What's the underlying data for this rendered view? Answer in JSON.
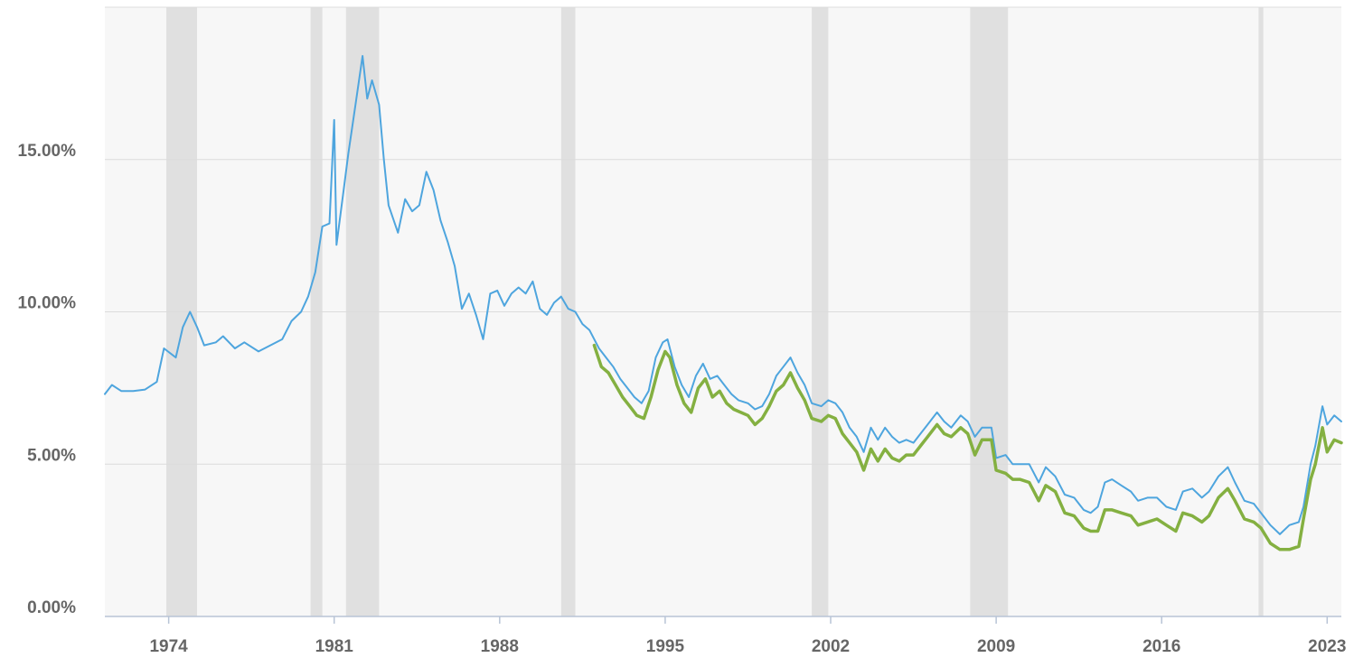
{
  "chart_data": {
    "type": "line",
    "title": "",
    "xlabel": "",
    "ylabel": "",
    "x_range": [
      1971.3,
      2023.6
    ],
    "ylim": [
      0,
      20
    ],
    "y_ticks": [
      {
        "value": 0,
        "label": "0.00%"
      },
      {
        "value": 5,
        "label": "5.00%"
      },
      {
        "value": 10,
        "label": "10.00%"
      },
      {
        "value": 15,
        "label": "15.00%"
      }
    ],
    "x_ticks": [
      {
        "value": 1974,
        "label": "1974"
      },
      {
        "value": 1981,
        "label": "1981"
      },
      {
        "value": 1988,
        "label": "1988"
      },
      {
        "value": 1995,
        "label": "1995"
      },
      {
        "value": 2002,
        "label": "2002"
      },
      {
        "value": 2009,
        "label": "2009"
      },
      {
        "value": 2016,
        "label": "2016"
      },
      {
        "value": 2023,
        "label": "2023"
      }
    ],
    "grid": true,
    "recessions": [
      [
        1973.9,
        1975.2
      ],
      [
        1980.0,
        1980.5
      ],
      [
        1981.5,
        1982.9
      ],
      [
        1990.6,
        1991.2
      ],
      [
        2001.2,
        2001.9
      ],
      [
        2007.9,
        2009.5
      ],
      [
        2020.1,
        2020.3
      ]
    ],
    "series": [
      {
        "color": "#4ea5de",
        "points": [
          [
            1971.3,
            7.3
          ],
          [
            1971.6,
            7.6
          ],
          [
            1972.0,
            7.4
          ],
          [
            1972.5,
            7.4
          ],
          [
            1973.0,
            7.45
          ],
          [
            1973.5,
            7.7
          ],
          [
            1973.8,
            8.8
          ],
          [
            1974.3,
            8.5
          ],
          [
            1974.6,
            9.5
          ],
          [
            1974.9,
            10.0
          ],
          [
            1975.2,
            9.5
          ],
          [
            1975.5,
            8.9
          ],
          [
            1976.0,
            9.0
          ],
          [
            1976.3,
            9.2
          ],
          [
            1976.8,
            8.8
          ],
          [
            1977.2,
            9.0
          ],
          [
            1977.8,
            8.7
          ],
          [
            1978.3,
            8.9
          ],
          [
            1978.8,
            9.1
          ],
          [
            1979.2,
            9.7
          ],
          [
            1979.6,
            10.0
          ],
          [
            1979.9,
            10.5
          ],
          [
            1980.2,
            11.3
          ],
          [
            1980.5,
            12.8
          ],
          [
            1980.8,
            12.9
          ],
          [
            1981.0,
            16.3
          ],
          [
            1981.1,
            12.2
          ],
          [
            1981.4,
            14.0
          ],
          [
            1981.6,
            15.2
          ],
          [
            1981.9,
            16.8
          ],
          [
            1982.2,
            18.4
          ],
          [
            1982.4,
            17.0
          ],
          [
            1982.6,
            17.6
          ],
          [
            1982.9,
            16.8
          ],
          [
            1983.1,
            15.0
          ],
          [
            1983.3,
            13.5
          ],
          [
            1983.7,
            12.6
          ],
          [
            1984.0,
            13.7
          ],
          [
            1984.3,
            13.3
          ],
          [
            1984.6,
            13.5
          ],
          [
            1984.9,
            14.6
          ],
          [
            1985.2,
            14.0
          ],
          [
            1985.5,
            13.0
          ],
          [
            1985.8,
            12.3
          ],
          [
            1986.1,
            11.5
          ],
          [
            1986.4,
            10.1
          ],
          [
            1986.7,
            10.6
          ],
          [
            1987.0,
            9.9
          ],
          [
            1987.3,
            9.1
          ],
          [
            1987.6,
            10.6
          ],
          [
            1987.9,
            10.7
          ],
          [
            1988.2,
            10.2
          ],
          [
            1988.5,
            10.6
          ],
          [
            1988.8,
            10.8
          ],
          [
            1989.1,
            10.6
          ],
          [
            1989.4,
            11.0
          ],
          [
            1989.7,
            10.1
          ],
          [
            1990.0,
            9.9
          ],
          [
            1990.3,
            10.3
          ],
          [
            1990.6,
            10.5
          ],
          [
            1990.9,
            10.1
          ],
          [
            1991.2,
            10.0
          ],
          [
            1991.5,
            9.6
          ],
          [
            1991.8,
            9.4
          ],
          [
            1992.2,
            8.8
          ],
          [
            1992.5,
            8.5
          ],
          [
            1992.8,
            8.2
          ],
          [
            1993.1,
            7.8
          ],
          [
            1993.4,
            7.5
          ],
          [
            1993.7,
            7.2
          ],
          [
            1994.0,
            7.0
          ],
          [
            1994.3,
            7.4
          ],
          [
            1994.6,
            8.5
          ],
          [
            1994.9,
            9.0
          ],
          [
            1995.1,
            9.1
          ],
          [
            1995.4,
            8.2
          ],
          [
            1995.7,
            7.6
          ],
          [
            1996.0,
            7.2
          ],
          [
            1996.3,
            7.9
          ],
          [
            1996.6,
            8.3
          ],
          [
            1996.9,
            7.8
          ],
          [
            1997.2,
            7.9
          ],
          [
            1997.5,
            7.6
          ],
          [
            1997.8,
            7.3
          ],
          [
            1998.1,
            7.1
          ],
          [
            1998.5,
            7.0
          ],
          [
            1998.8,
            6.8
          ],
          [
            1999.1,
            6.9
          ],
          [
            1999.4,
            7.3
          ],
          [
            1999.7,
            7.9
          ],
          [
            2000.0,
            8.2
          ],
          [
            2000.3,
            8.5
          ],
          [
            2000.6,
            8.0
          ],
          [
            2000.9,
            7.6
          ],
          [
            2001.2,
            7.0
          ],
          [
            2001.6,
            6.9
          ],
          [
            2001.9,
            7.1
          ],
          [
            2002.2,
            7.0
          ],
          [
            2002.5,
            6.7
          ],
          [
            2002.8,
            6.2
          ],
          [
            2003.1,
            5.9
          ],
          [
            2003.4,
            5.4
          ],
          [
            2003.7,
            6.2
          ],
          [
            2004.0,
            5.8
          ],
          [
            2004.3,
            6.2
          ],
          [
            2004.6,
            5.9
          ],
          [
            2004.9,
            5.7
          ],
          [
            2005.2,
            5.8
          ],
          [
            2005.5,
            5.7
          ],
          [
            2005.8,
            6.0
          ],
          [
            2006.1,
            6.3
          ],
          [
            2006.5,
            6.7
          ],
          [
            2006.8,
            6.4
          ],
          [
            2007.1,
            6.2
          ],
          [
            2007.5,
            6.6
          ],
          [
            2007.8,
            6.4
          ],
          [
            2008.1,
            5.9
          ],
          [
            2008.4,
            6.2
          ],
          [
            2008.8,
            6.2
          ],
          [
            2009.0,
            5.2
          ],
          [
            2009.4,
            5.3
          ],
          [
            2009.7,
            5.0
          ],
          [
            2010.0,
            5.0
          ],
          [
            2010.4,
            5.0
          ],
          [
            2010.8,
            4.4
          ],
          [
            2011.1,
            4.9
          ],
          [
            2011.5,
            4.6
          ],
          [
            2011.9,
            4.0
          ],
          [
            2012.3,
            3.9
          ],
          [
            2012.7,
            3.5
          ],
          [
            2013.0,
            3.4
          ],
          [
            2013.3,
            3.6
          ],
          [
            2013.6,
            4.4
          ],
          [
            2013.9,
            4.5
          ],
          [
            2014.3,
            4.3
          ],
          [
            2014.7,
            4.1
          ],
          [
            2015.0,
            3.8
          ],
          [
            2015.4,
            3.9
          ],
          [
            2015.8,
            3.9
          ],
          [
            2016.2,
            3.6
          ],
          [
            2016.6,
            3.5
          ],
          [
            2016.9,
            4.1
          ],
          [
            2017.3,
            4.2
          ],
          [
            2017.7,
            3.9
          ],
          [
            2018.0,
            4.1
          ],
          [
            2018.4,
            4.6
          ],
          [
            2018.8,
            4.9
          ],
          [
            2019.1,
            4.4
          ],
          [
            2019.5,
            3.8
          ],
          [
            2019.9,
            3.7
          ],
          [
            2020.2,
            3.4
          ],
          [
            2020.6,
            3.0
          ],
          [
            2021.0,
            2.7
          ],
          [
            2021.4,
            3.0
          ],
          [
            2021.8,
            3.1
          ],
          [
            2022.0,
            3.6
          ],
          [
            2022.3,
            5.0
          ],
          [
            2022.5,
            5.6
          ],
          [
            2022.8,
            6.9
          ],
          [
            2023.0,
            6.3
          ],
          [
            2023.3,
            6.6
          ],
          [
            2023.6,
            6.4
          ]
        ]
      },
      {
        "color": "#84b041",
        "points": [
          [
            1992.0,
            8.9
          ],
          [
            1992.3,
            8.2
          ],
          [
            1992.6,
            8.0
          ],
          [
            1992.9,
            7.6
          ],
          [
            1993.2,
            7.2
          ],
          [
            1993.5,
            6.9
          ],
          [
            1993.8,
            6.6
          ],
          [
            1994.1,
            6.5
          ],
          [
            1994.4,
            7.2
          ],
          [
            1994.7,
            8.1
          ],
          [
            1995.0,
            8.7
          ],
          [
            1995.2,
            8.5
          ],
          [
            1995.5,
            7.6
          ],
          [
            1995.8,
            7.0
          ],
          [
            1996.1,
            6.7
          ],
          [
            1996.4,
            7.5
          ],
          [
            1996.7,
            7.8
          ],
          [
            1997.0,
            7.2
          ],
          [
            1997.3,
            7.4
          ],
          [
            1997.6,
            7.0
          ],
          [
            1997.9,
            6.8
          ],
          [
            1998.2,
            6.7
          ],
          [
            1998.5,
            6.6
          ],
          [
            1998.8,
            6.3
          ],
          [
            1999.1,
            6.5
          ],
          [
            1999.4,
            6.9
          ],
          [
            1999.7,
            7.4
          ],
          [
            2000.0,
            7.6
          ],
          [
            2000.3,
            8.0
          ],
          [
            2000.6,
            7.5
          ],
          [
            2000.9,
            7.1
          ],
          [
            2001.2,
            6.5
          ],
          [
            2001.6,
            6.4
          ],
          [
            2001.9,
            6.6
          ],
          [
            2002.2,
            6.5
          ],
          [
            2002.5,
            6.0
          ],
          [
            2002.8,
            5.7
          ],
          [
            2003.1,
            5.4
          ],
          [
            2003.4,
            4.8
          ],
          [
            2003.7,
            5.5
          ],
          [
            2004.0,
            5.1
          ],
          [
            2004.3,
            5.5
          ],
          [
            2004.6,
            5.2
          ],
          [
            2004.9,
            5.1
          ],
          [
            2005.2,
            5.3
          ],
          [
            2005.5,
            5.3
          ],
          [
            2005.8,
            5.6
          ],
          [
            2006.1,
            5.9
          ],
          [
            2006.5,
            6.3
          ],
          [
            2006.8,
            6.0
          ],
          [
            2007.1,
            5.9
          ],
          [
            2007.5,
            6.2
          ],
          [
            2007.8,
            6.0
          ],
          [
            2008.1,
            5.3
          ],
          [
            2008.4,
            5.8
          ],
          [
            2008.8,
            5.8
          ],
          [
            2009.0,
            4.8
          ],
          [
            2009.4,
            4.7
          ],
          [
            2009.7,
            4.5
          ],
          [
            2010.0,
            4.5
          ],
          [
            2010.4,
            4.4
          ],
          [
            2010.8,
            3.8
          ],
          [
            2011.1,
            4.3
          ],
          [
            2011.5,
            4.1
          ],
          [
            2011.9,
            3.4
          ],
          [
            2012.3,
            3.3
          ],
          [
            2012.7,
            2.9
          ],
          [
            2013.0,
            2.8
          ],
          [
            2013.3,
            2.8
          ],
          [
            2013.6,
            3.5
          ],
          [
            2013.9,
            3.5
          ],
          [
            2014.3,
            3.4
          ],
          [
            2014.7,
            3.3
          ],
          [
            2015.0,
            3.0
          ],
          [
            2015.4,
            3.1
          ],
          [
            2015.8,
            3.2
          ],
          [
            2016.2,
            3.0
          ],
          [
            2016.6,
            2.8
          ],
          [
            2016.9,
            3.4
          ],
          [
            2017.3,
            3.3
          ],
          [
            2017.7,
            3.1
          ],
          [
            2018.0,
            3.3
          ],
          [
            2018.4,
            3.9
          ],
          [
            2018.8,
            4.2
          ],
          [
            2019.1,
            3.8
          ],
          [
            2019.5,
            3.2
          ],
          [
            2019.9,
            3.1
          ],
          [
            2020.2,
            2.9
          ],
          [
            2020.6,
            2.4
          ],
          [
            2021.0,
            2.2
          ],
          [
            2021.4,
            2.2
          ],
          [
            2021.8,
            2.3
          ],
          [
            2022.0,
            3.2
          ],
          [
            2022.3,
            4.5
          ],
          [
            2022.5,
            5.0
          ],
          [
            2022.8,
            6.2
          ],
          [
            2023.0,
            5.4
          ],
          [
            2023.3,
            5.8
          ],
          [
            2023.6,
            5.7
          ]
        ]
      }
    ]
  }
}
